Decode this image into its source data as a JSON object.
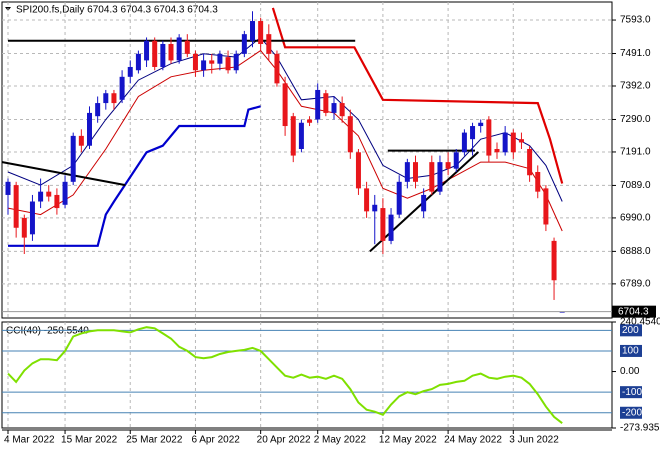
{
  "chart_data": [
    {
      "type": "candlestick",
      "title": "SPI200.fs,Daily  6704.3 6704.3 6704.3 6704.3",
      "categories": [
        "4 Mar 2022",
        null,
        null,
        null,
        null,
        null,
        null,
        "15 Mar 2022",
        null,
        null,
        null,
        null,
        null,
        null,
        null,
        "25 Mar 2022",
        null,
        null,
        null,
        null,
        null,
        null,
        null,
        "6 Apr 2022",
        null,
        null,
        null,
        null,
        null,
        null,
        null,
        "20 Apr 2022",
        null,
        null,
        null,
        null,
        null,
        null,
        "2 May 2022",
        null,
        null,
        null,
        null,
        null,
        null,
        null,
        "12 May 2022",
        null,
        null,
        null,
        null,
        null,
        null,
        null,
        "24 May 2022",
        null,
        null,
        null,
        null,
        null,
        null,
        null,
        "3 Jun 2022",
        null,
        null,
        null,
        null,
        null,
        null
      ],
      "open": [
        7060,
        7090,
        6990,
        6940,
        7040,
        7070,
        7060,
        7030,
        7100,
        7240,
        7210,
        7300,
        7340,
        7370,
        7350,
        7420,
        7440,
        7470,
        7530,
        7450,
        7520,
        7470,
        7530,
        7490,
        7440,
        7470,
        7460,
        7480,
        7440,
        7490,
        7530,
        7590,
        7550,
        7490,
        7400,
        7300,
        7200,
        7290,
        7290,
        7370,
        7310,
        7340,
        7300,
        7190,
        7080,
        7010,
        7020,
        6920,
        7000,
        7100,
        7160,
        7010,
        7160,
        7070,
        7160,
        7140,
        7190,
        7230,
        7270,
        7290,
        7200,
        7190,
        7250,
        7230,
        7200,
        7130,
        7080,
        6920,
        6704.3
      ],
      "high": [
        7110,
        7100,
        7000,
        7060,
        7110,
        7090,
        7080,
        7120,
        7250,
        7260,
        7330,
        7360,
        7380,
        7380,
        7440,
        7470,
        7500,
        7540,
        7540,
        7530,
        7540,
        7550,
        7550,
        7500,
        7490,
        7490,
        7500,
        7500,
        7500,
        7560,
        7620,
        7600,
        7580,
        7500,
        7420,
        7310,
        7290,
        7300,
        7400,
        7380,
        7360,
        7360,
        7320,
        7200,
        7100,
        7060,
        7050,
        7020,
        7120,
        7170,
        7180,
        7080,
        7180,
        7180,
        7190,
        7200,
        7260,
        7280,
        7290,
        7300,
        7220,
        7270,
        7260,
        7250,
        7210,
        7150,
        7090,
        6930,
        6704.3
      ],
      "low": [
        7000,
        6930,
        6880,
        6920,
        7020,
        7040,
        7000,
        7020,
        7090,
        7190,
        7200,
        7280,
        7320,
        7320,
        7340,
        7400,
        7430,
        7450,
        7440,
        7440,
        7460,
        7460,
        7480,
        7420,
        7420,
        7430,
        7440,
        7430,
        7430,
        7480,
        7510,
        7500,
        7470,
        7390,
        7240,
        7160,
        7190,
        7270,
        7280,
        7300,
        7290,
        7280,
        7170,
        7060,
        6990,
        6910,
        6880,
        6910,
        6990,
        7080,
        7080,
        6990,
        7060,
        7060,
        7120,
        7130,
        7180,
        7180,
        7250,
        7160,
        7170,
        7180,
        7170,
        7200,
        7100,
        7050,
        6950,
        6740,
        6704.3
      ],
      "close": [
        7100,
        6960,
        6930,
        7040,
        7070,
        7055,
        7020,
        7100,
        7240,
        7210,
        7310,
        7340,
        7370,
        7340,
        7420,
        7450,
        7490,
        7530,
        7450,
        7520,
        7470,
        7540,
        7490,
        7440,
        7470,
        7460,
        7490,
        7440,
        7490,
        7550,
        7590,
        7520,
        7490,
        7400,
        7270,
        7180,
        7280,
        7280,
        7380,
        7310,
        7340,
        7300,
        7190,
        7080,
        7010,
        7030,
        6920,
        7000,
        7100,
        7160,
        7100,
        7060,
        7070,
        7160,
        7140,
        7190,
        7250,
        7270,
        7280,
        7180,
        7190,
        7250,
        7190,
        7220,
        7120,
        7070,
        6970,
        6800,
        6704.3
      ],
      "up_color": "#1414c8",
      "down_color": "#e8161b",
      "overlays": [
        {
          "color": "#0000cd",
          "width": 2.2,
          "x": [
            0,
            11,
            12,
            13,
            17,
            19,
            21,
            29,
            29.5,
            31
          ],
          "values": [
            6905,
            6905,
            7000,
            7040,
            7190,
            7210,
            7270,
            7270,
            7320,
            7330
          ]
        },
        {
          "color": "#e00000",
          "width": 2.2,
          "x": [
            32.5,
            34,
            42.5,
            46,
            65,
            66.5,
            68
          ],
          "values": [
            7630,
            7510,
            7510,
            7350,
            7340,
            7230,
            7095
          ]
        },
        {
          "color": "#000080",
          "width": 1,
          "x": [
            0,
            4,
            8,
            12,
            16,
            20,
            24,
            28,
            31,
            33,
            36,
            40,
            43,
            46,
            49,
            52,
            55,
            58,
            61,
            64,
            66,
            68
          ],
          "values": [
            7130,
            7090,
            7150,
            7290,
            7410,
            7460,
            7490,
            7480,
            7540,
            7480,
            7350,
            7360,
            7290,
            7150,
            7110,
            7120,
            7150,
            7230,
            7250,
            7210,
            7150,
            7040
          ]
        },
        {
          "color": "#cc0000",
          "width": 1,
          "x": [
            0,
            4,
            8,
            12,
            16,
            20,
            24,
            28,
            31,
            33,
            36,
            40,
            43,
            46,
            49,
            52,
            55,
            58,
            61,
            64,
            66,
            68
          ],
          "values": [
            7020,
            7000,
            7060,
            7200,
            7360,
            7420,
            7440,
            7450,
            7500,
            7440,
            7330,
            7310,
            7240,
            7080,
            7050,
            7080,
            7120,
            7160,
            7160,
            7140,
            7060,
            6950
          ]
        },
        {
          "color": "#000000",
          "width": 2,
          "x": [
            0,
            42.6
          ],
          "values": [
            7530,
            7530
          ]
        },
        {
          "color": "#000000",
          "width": 2,
          "x": [
            -0.7,
            14.4
          ],
          "values": [
            7160,
            7090
          ]
        },
        {
          "color": "#000000",
          "width": 2,
          "x": [
            46.6,
            57.3
          ],
          "values": [
            7195,
            7195
          ]
        },
        {
          "color": "#000000",
          "width": 2,
          "x": [
            44.4,
            57.7
          ],
          "values": [
            6888,
            7191
          ]
        }
      ],
      "last_price": 6704.3,
      "ylim": [
        6685,
        7648
      ],
      "yticks": [
        {
          "value": 7593,
          "label": "7593.0"
        },
        {
          "value": 7491,
          "label": "7491.0"
        },
        {
          "value": 7392,
          "label": "7392.0"
        },
        {
          "value": 7290,
          "label": "7290.0"
        },
        {
          "value": 7191,
          "label": "7191.0"
        },
        {
          "value": 7089,
          "label": "7089.0"
        },
        {
          "value": 6990,
          "label": "6990.0"
        },
        {
          "value": 6888,
          "label": "6888.0"
        },
        {
          "value": 6789,
          "label": "6789.0"
        }
      ],
      "grid": true
    },
    {
      "type": "line",
      "title": "CCI(40) -250.5540",
      "color": "#7fe000",
      "values": [
        -10,
        -50,
        5,
        40,
        60,
        60,
        55,
        100,
        170,
        185,
        195,
        200,
        200,
        200,
        195,
        190,
        205,
        215,
        210,
        185,
        160,
        120,
        100,
        70,
        65,
        70,
        85,
        95,
        100,
        105,
        115,
        100,
        60,
        20,
        -20,
        -30,
        -15,
        -30,
        -25,
        -35,
        -20,
        -35,
        -85,
        -150,
        -185,
        -195,
        -210,
        -160,
        -120,
        -100,
        -110,
        -95,
        -85,
        -65,
        -60,
        -50,
        -45,
        -20,
        -10,
        -30,
        -35,
        -25,
        -20,
        -30,
        -60,
        -110,
        -170,
        -220,
        -250.554
      ],
      "levels": [
        200,
        100,
        -100,
        -200
      ],
      "ylim": [
        -273.935,
        240.454
      ],
      "yticks": [
        {
          "value": 240.454,
          "label": "240.4540"
        },
        {
          "value": 0,
          "label": "0.00"
        },
        -273.935
      ],
      "grid": true
    }
  ]
}
